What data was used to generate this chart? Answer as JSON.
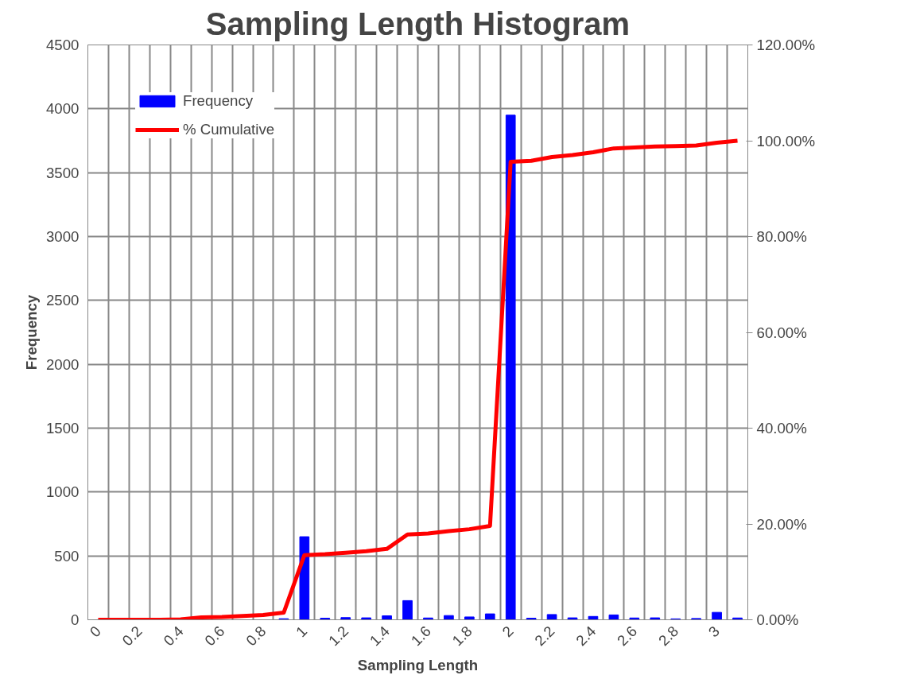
{
  "chart_data": {
    "type": "bar",
    "title": "Sampling Length Histogram",
    "xlabel": "Sampling Length",
    "ylabel": "Frequency",
    "categories": [
      "0",
      null,
      "0.2",
      null,
      "0.4",
      null,
      "0.6",
      null,
      "0.8",
      null,
      "1",
      null,
      "1.2",
      null,
      "1.4",
      null,
      "1.6",
      null,
      "1.8",
      null,
      "2",
      null,
      "2.2",
      null,
      "2.4",
      null,
      "2.6",
      null,
      "2.8",
      null,
      "3",
      null
    ],
    "series": [
      {
        "name": "Frequency",
        "color": "#0000ff",
        "values": [
          null,
          null,
          null,
          null,
          null,
          null,
          null,
          null,
          null,
          8,
          650,
          12,
          17,
          15,
          31,
          150,
          14,
          33,
          22,
          46,
          3950,
          12,
          41,
          15,
          26,
          38,
          14,
          15,
          7,
          10,
          58,
          14
        ]
      },
      {
        "name": "% Cumulative",
        "type": "line",
        "axis": "y2",
        "color": "#ff0000",
        "values": [
          0,
          0,
          0,
          0,
          0.1,
          0.5,
          0.6,
          0.8,
          1.0,
          1.5,
          13.5,
          13.7,
          14.0,
          14.3,
          14.8,
          17.8,
          18.0,
          18.5,
          18.9,
          19.6,
          95.6,
          95.8,
          96.6,
          97.0,
          97.6,
          98.4,
          98.6,
          98.8,
          98.9,
          99.0,
          99.6,
          100
        ]
      }
    ],
    "ylim": [
      0,
      4500
    ],
    "yticks": [
      0,
      500,
      1000,
      1500,
      2000,
      2500,
      3000,
      3500,
      4000,
      4500
    ],
    "y2lim": [
      0,
      120
    ],
    "y2ticks": [
      {
        "value": 0,
        "label": "0.00%"
      },
      {
        "value": 20,
        "label": "20.00%"
      },
      {
        "value": 40,
        "label": "40.00%"
      },
      {
        "value": 60,
        "label": "60.00%"
      },
      {
        "value": 80,
        "label": "80.00%"
      },
      {
        "value": 100,
        "label": "100.00%"
      },
      {
        "value": 120,
        "label": "120.00%"
      }
    ],
    "grid": true,
    "legend": "top left",
    "marker": "none",
    "line_style": "solid"
  }
}
